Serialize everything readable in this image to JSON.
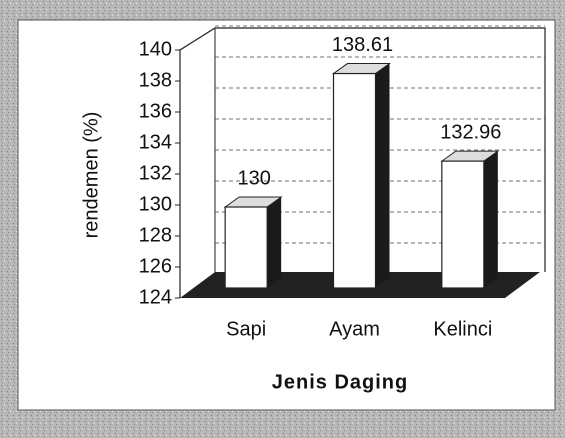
{
  "chart_data": {
    "type": "bar",
    "categories": [
      "Sapi",
      "Ayam",
      "Kelinci"
    ],
    "values": [
      130,
      138.61,
      132.96
    ],
    "color": "#ffffff",
    "xlabel": "Jenis Daging",
    "ylabel": "rendemen (%)",
    "ylim": [
      124,
      140
    ],
    "yticks": [
      124,
      126,
      128,
      130,
      132,
      134,
      136,
      138,
      140
    ],
    "grid": true
  }
}
